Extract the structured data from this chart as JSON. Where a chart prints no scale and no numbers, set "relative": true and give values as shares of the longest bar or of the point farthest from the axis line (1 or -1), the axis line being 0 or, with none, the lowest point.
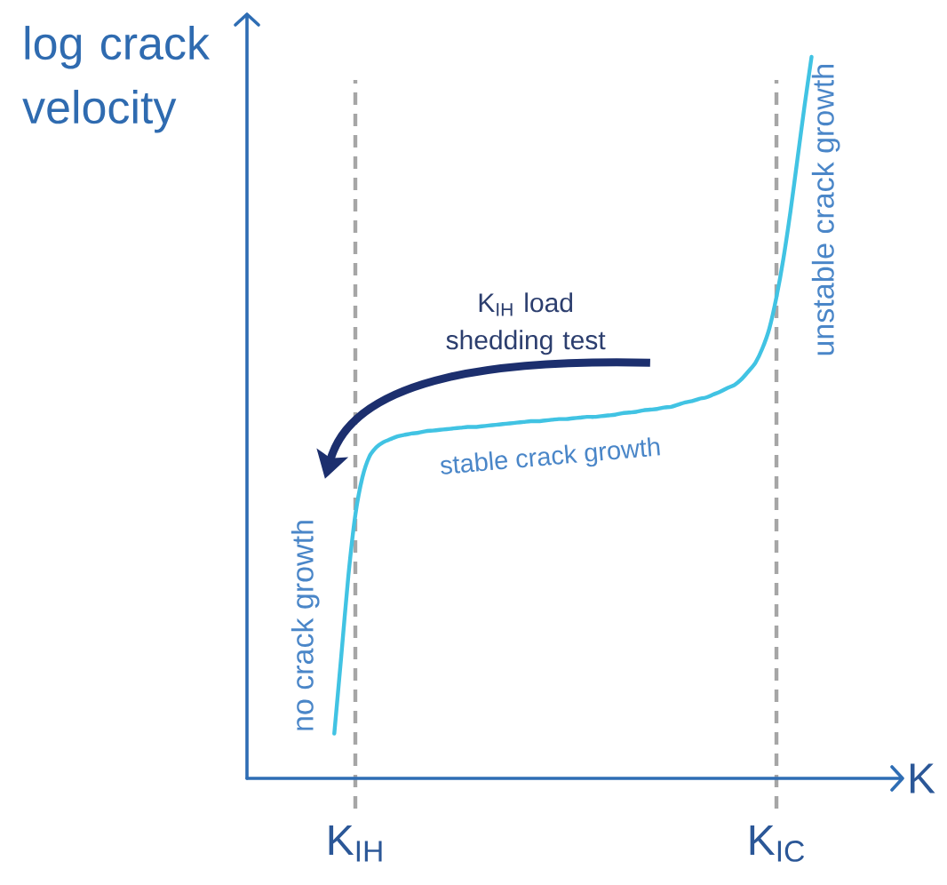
{
  "chart_data": {
    "type": "line",
    "relative": true,
    "xlabel": "K",
    "ylabel": "log crack velocity",
    "categories": [
      null,
      null,
      null,
      "K$_{IH}$",
      null,
      null,
      null,
      null,
      null,
      null,
      null,
      null,
      null,
      null,
      null,
      null,
      null,
      null,
      null,
      null,
      null,
      null,
      null,
      null,
      null,
      null,
      null,
      null,
      null,
      null,
      null,
      null,
      null,
      null,
      null,
      null,
      null,
      null,
      null,
      null,
      null,
      null,
      null,
      null,
      null,
      null,
      null,
      null,
      null,
      null,
      null,
      null,
      null,
      null,
      null,
      null,
      null,
      null,
      null,
      null,
      null,
      null,
      null,
      "K$_{IC}$",
      null,
      null,
      null,
      null,
      null
    ],
    "values": [
      0.062,
      0.17,
      0.28,
      0.365,
      0.417,
      0.446,
      0.459,
      0.466,
      0.47,
      0.474,
      0.476,
      0.478,
      0.479,
      0.481,
      0.482,
      0.483,
      0.484,
      0.485,
      0.486,
      0.487,
      0.487,
      0.488,
      0.489,
      0.49,
      0.491,
      0.492,
      0.493,
      0.494,
      0.495,
      0.495,
      0.496,
      0.497,
      0.498,
      0.498,
      0.499,
      0.5,
      0.501,
      0.501,
      0.502,
      0.503,
      0.504,
      0.506,
      0.507,
      0.508,
      0.51,
      0.511,
      0.512,
      0.514,
      0.515,
      0.518,
      0.521,
      0.523,
      0.526,
      0.528,
      0.532,
      0.536,
      0.541,
      0.545,
      0.553,
      0.564,
      0.576,
      0.596,
      0.624,
      0.667,
      0.721,
      0.786,
      0.859,
      0.932,
      1.0
    ],
    "color": "#41c3e3",
    "grid": "x",
    "tick_labels": "x",
    "annotations": [
      "no crack growth",
      "stable crack growth",
      "unstable crack growth",
      "K$_{IH}$ load shedding test"
    ]
  }
}
